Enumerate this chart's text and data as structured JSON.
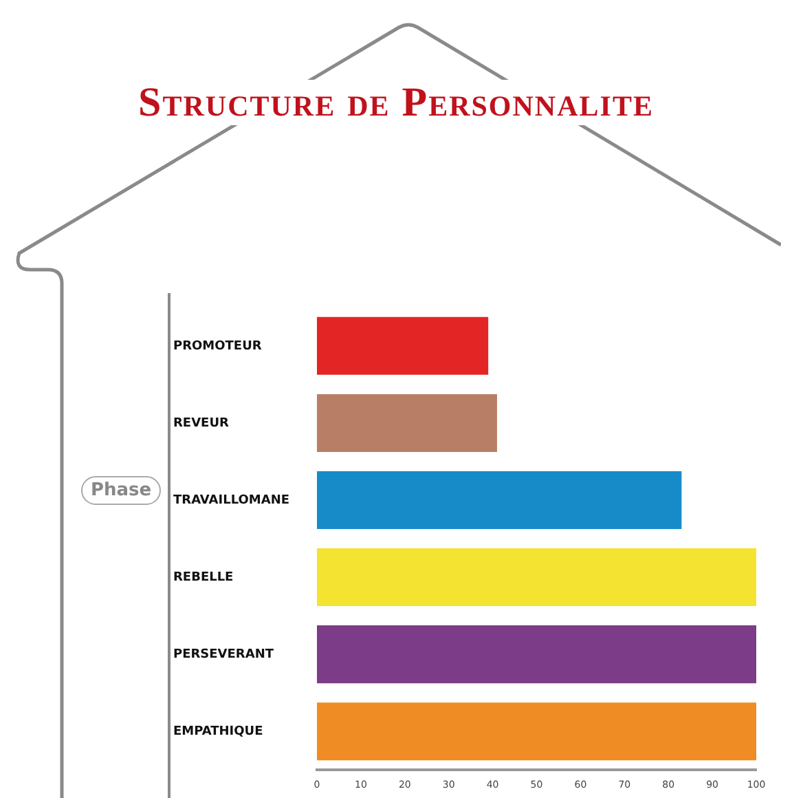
{
  "chart_data": {
    "type": "bar",
    "orientation": "horizontal",
    "title": "Structure de Personnalite",
    "categories": [
      "PROMOTEUR",
      "REVEUR",
      "TRAVAILLOMANE",
      "REBELLE",
      "PERSEVERANT",
      "EMPATHIQUE"
    ],
    "values": [
      39,
      41,
      83,
      100,
      100,
      100
    ],
    "colors": [
      "#e32526",
      "#b97f66",
      "#178bc8",
      "#f4e331",
      "#7c3c87",
      "#ef8c24"
    ],
    "xlim": [
      0,
      100
    ],
    "xticks": [
      0,
      10,
      20,
      30,
      40,
      50,
      60,
      70,
      80,
      90,
      100
    ],
    "grid": false,
    "annotations": [
      "Phase"
    ]
  }
}
